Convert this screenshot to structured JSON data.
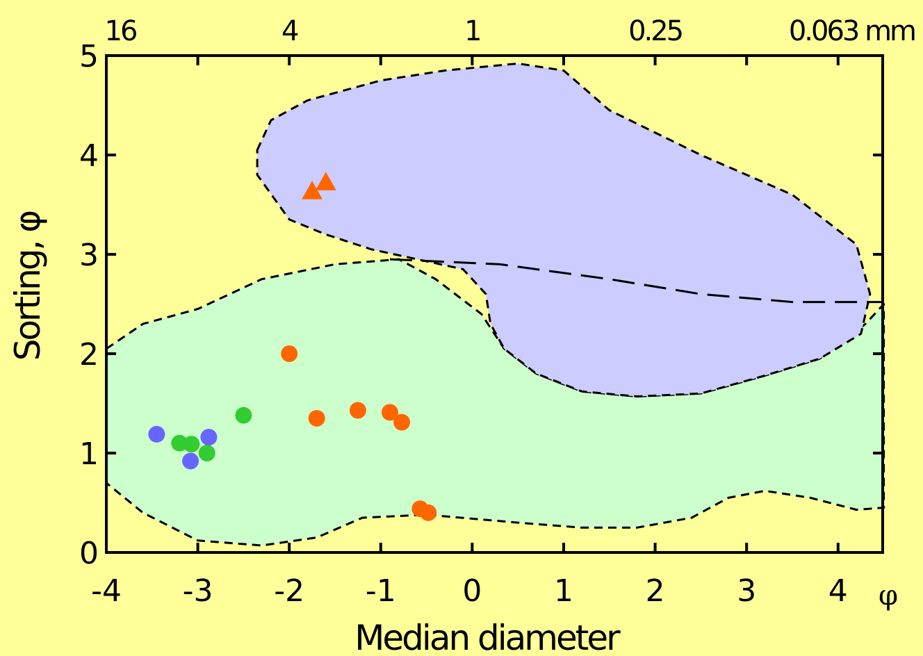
{
  "chart_data": {
    "type": "scatter",
    "xlabel": "Median diameter",
    "ylabel": "Sorting, φ",
    "x_unit": "φ",
    "xlim": [
      -4,
      4.5
    ],
    "ylim": [
      0,
      5
    ],
    "x_ticks": [
      "-4",
      "-3",
      "-2",
      "-1",
      "0",
      "1",
      "2",
      "3",
      "4"
    ],
    "y_ticks": [
      "0",
      "1",
      "2",
      "3",
      "4",
      "5"
    ],
    "top_axis": {
      "ticks": [
        {
          "phi": -4,
          "label": "16"
        },
        {
          "phi": -2,
          "label": "4"
        },
        {
          "phi": 0,
          "label": "1"
        },
        {
          "phi": 2,
          "label": "0.25"
        },
        {
          "phi": 4,
          "label": "0.063 mm"
        }
      ]
    },
    "regions": [
      {
        "color": "#ccffcc",
        "outline": [
          [
            -4,
            2.05
          ],
          [
            -3.6,
            2.3
          ],
          [
            -3.0,
            2.45
          ],
          [
            -2.3,
            2.75
          ],
          [
            -1.5,
            2.9
          ],
          [
            -0.8,
            2.95
          ],
          [
            -0.4,
            2.75
          ],
          [
            0.1,
            2.4
          ],
          [
            0.35,
            2.05
          ],
          [
            0.7,
            1.8
          ],
          [
            1.2,
            1.62
          ],
          [
            1.8,
            1.57
          ],
          [
            2.5,
            1.6
          ],
          [
            3.2,
            1.78
          ],
          [
            3.8,
            1.95
          ],
          [
            4.3,
            2.3
          ],
          [
            4.5,
            2.5
          ],
          [
            4.5,
            0.45
          ],
          [
            4.2,
            0.43
          ],
          [
            3.7,
            0.55
          ],
          [
            3.2,
            0.62
          ],
          [
            2.8,
            0.55
          ],
          [
            2.4,
            0.35
          ],
          [
            1.8,
            0.25
          ],
          [
            1.2,
            0.25
          ],
          [
            0.5,
            0.3
          ],
          [
            -0.5,
            0.38
          ],
          [
            -1.2,
            0.35
          ],
          [
            -1.7,
            0.15
          ],
          [
            -2.3,
            0.07
          ],
          [
            -3.0,
            0.12
          ],
          [
            -3.6,
            0.4
          ],
          [
            -4,
            0.7
          ]
        ]
      },
      {
        "color": "#ccccff",
        "outline": [
          [
            -2.35,
            4.05
          ],
          [
            -2.2,
            4.35
          ],
          [
            -1.8,
            4.55
          ],
          [
            -1.0,
            4.75
          ],
          [
            -0.3,
            4.85
          ],
          [
            0.5,
            4.92
          ],
          [
            1.0,
            4.85
          ],
          [
            1.5,
            4.45
          ],
          [
            2.5,
            4.0
          ],
          [
            3.5,
            3.6
          ],
          [
            4.2,
            3.1
          ],
          [
            4.35,
            2.6
          ],
          [
            4.25,
            2.2
          ],
          [
            3.8,
            1.95
          ],
          [
            3.2,
            1.78
          ],
          [
            2.5,
            1.6
          ],
          [
            1.8,
            1.57
          ],
          [
            1.2,
            1.62
          ],
          [
            0.7,
            1.8
          ],
          [
            0.35,
            2.05
          ],
          [
            0.2,
            2.3
          ],
          [
            0.15,
            2.6
          ],
          [
            -0.1,
            2.85
          ],
          [
            -0.6,
            2.95
          ],
          [
            -1.1,
            3.05
          ],
          [
            -1.6,
            3.2
          ],
          [
            -2.0,
            3.35
          ],
          [
            -2.35,
            3.8
          ]
        ]
      }
    ],
    "boundary_line": [
      [
        -0.9,
        2.95
      ],
      [
        0.3,
        2.9
      ],
      [
        1.5,
        2.75
      ],
      [
        2.5,
        2.6
      ],
      [
        3.5,
        2.52
      ],
      [
        4.5,
        2.52
      ]
    ],
    "series": [
      {
        "color": "#ff6600",
        "marker": "circle",
        "points": [
          [
            -2.0,
            2.0
          ],
          [
            -1.7,
            1.35
          ],
          [
            -1.25,
            1.43
          ],
          [
            -0.9,
            1.41
          ],
          [
            -0.77,
            1.31
          ],
          [
            -0.57,
            0.44
          ],
          [
            -0.48,
            0.4
          ]
        ]
      },
      {
        "color": "#ff6600",
        "marker": "triangle",
        "points": [
          [
            -1.75,
            3.63
          ],
          [
            -1.6,
            3.72
          ]
        ]
      },
      {
        "color": "#33cc33",
        "marker": "circle",
        "points": [
          [
            -2.5,
            1.38
          ],
          [
            -3.2,
            1.1
          ],
          [
            -3.07,
            1.09
          ],
          [
            -2.9,
            1.0
          ]
        ]
      },
      {
        "color": "#6666ff",
        "marker": "circle",
        "points": [
          [
            -3.45,
            1.19
          ],
          [
            -2.88,
            1.16
          ],
          [
            -3.08,
            0.92
          ]
        ]
      }
    ]
  }
}
